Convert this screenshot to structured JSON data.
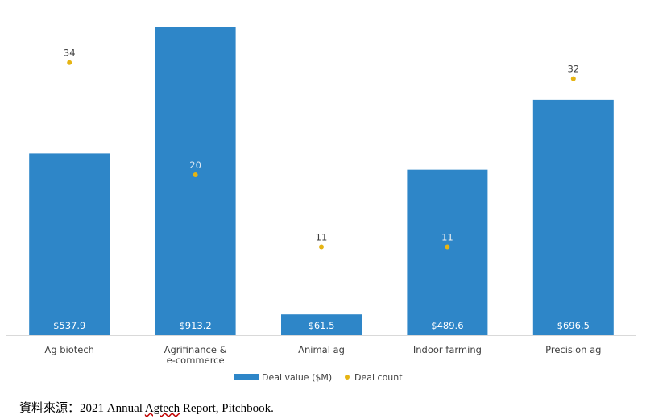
{
  "chart_data": {
    "type": "bar",
    "categories": [
      "Ag biotech",
      "Agrifinance & e-commerce",
      "Animal ag",
      "Indoor farming",
      "Precision ag"
    ],
    "category_lines": [
      [
        "Ag biotech"
      ],
      [
        "Agrifinance &",
        "e-commerce"
      ],
      [
        "Animal ag"
      ],
      [
        "Indoor farming"
      ],
      [
        "Precision ag"
      ]
    ],
    "series": [
      {
        "name": "Deal value ($M)",
        "type": "bar",
        "color": "#2E86C8",
        "values": [
          537.9,
          913.2,
          61.5,
          489.6,
          696.5
        ],
        "labels": [
          "$537.9",
          "$913.2",
          "$61.5",
          "$489.6",
          "$696.5"
        ]
      },
      {
        "name": "Deal count",
        "type": "scatter",
        "color": "#E6B413",
        "values": [
          34,
          20,
          11,
          11,
          32
        ],
        "labels": [
          "34",
          "20",
          "11",
          "11",
          "32"
        ]
      }
    ],
    "ylim_value": [
      0,
      913.2
    ],
    "ylim_count": [
      0,
      40
    ],
    "legend_position": "bottom",
    "grid": false
  },
  "source": {
    "prefix": "資料來源：2021 Annual ",
    "link": "Agtech",
    "suffix": " Report, Pitchbook."
  }
}
